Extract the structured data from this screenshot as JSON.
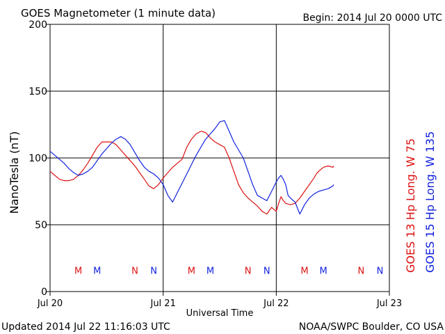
{
  "page": {
    "title": "GOES Magnetometer (1 minute data)",
    "begin": "Begin:  2014 Jul 20 0000 UTC",
    "updated": "Updated 2014 Jul 22 11:16:03 UTC",
    "credit": "NOAA/SWPC Boulder, CO USA"
  },
  "colors": {
    "goes13": "#dd1111",
    "goes15": "#1122dd",
    "axis": "#000000",
    "grid": "#000000",
    "background": "#ffffff"
  },
  "chart_data": {
    "type": "line",
    "title": "GOES Magnetometer (1 minute data)",
    "xlabel": "Universal Time",
    "ylabel": "NanoTesla (nT)",
    "ylim": [
      0,
      200
    ],
    "xlim": [
      0,
      72
    ],
    "x_unit": "hours since 2014 Jul 20 0000 UTC",
    "yticks": [
      {
        "value": 0,
        "label": "0"
      },
      {
        "value": 50,
        "label": "50"
      },
      {
        "value": 100,
        "label": "100"
      },
      {
        "value": 150,
        "label": "150"
      },
      {
        "value": 200,
        "label": "200"
      }
    ],
    "xticks": [
      {
        "value": 0,
        "label": "Jul 20"
      },
      {
        "value": 24,
        "label": "Jul 21"
      },
      {
        "value": 48,
        "label": "Jul 22"
      },
      {
        "value": 72,
        "label": "Jul 23"
      }
    ],
    "grid": true,
    "legend_position": "right, vertical",
    "series": [
      {
        "name": "GOES 13 Hp  Long. W 75",
        "color": "#dd1111",
        "x": [
          0,
          1,
          2,
          3,
          4,
          5,
          6,
          7,
          8,
          9,
          10,
          11,
          12,
          13,
          14,
          15,
          16,
          17,
          18,
          19,
          20,
          21,
          22,
          23,
          24,
          25,
          26,
          27,
          28,
          29,
          30,
          31,
          32,
          33,
          34,
          35,
          36,
          37,
          38,
          39,
          40,
          41,
          42,
          43,
          44,
          45,
          46,
          47,
          48,
          48.5,
          49,
          49.5,
          50,
          51,
          52,
          53,
          54,
          55,
          56,
          56.5,
          57,
          58,
          59,
          60,
          60.2
        ],
        "y": [
          90,
          87,
          84,
          83,
          83,
          84,
          87,
          91,
          96,
          102,
          108,
          112,
          112,
          112,
          110,
          106,
          102,
          98,
          94,
          89,
          84,
          79,
          77,
          80,
          85,
          89,
          93,
          96,
          99,
          108,
          114,
          118,
          120,
          119,
          115,
          112,
          110,
          108,
          100,
          90,
          80,
          74,
          70,
          67,
          64,
          60,
          58,
          63,
          60,
          66,
          71,
          68,
          66,
          65,
          66,
          70,
          75,
          80,
          85,
          88,
          90,
          93,
          94,
          93,
          94
        ]
      },
      {
        "name": "GOES 15 Hp  Long. W 135",
        "color": "#1122dd",
        "x": [
          0,
          1,
          2,
          3,
          4,
          5,
          6,
          7,
          8,
          9,
          10,
          11,
          12,
          13,
          14,
          15,
          16,
          17,
          18,
          19,
          20,
          21,
          22,
          23,
          24,
          25,
          26,
          27,
          28,
          29,
          30,
          31,
          32,
          33,
          34,
          35,
          36,
          37,
          38,
          39,
          40,
          41,
          42,
          43,
          44,
          45,
          46,
          47,
          48,
          48.5,
          49,
          49.5,
          50,
          50.5,
          51,
          52,
          53,
          54,
          55,
          56,
          57,
          58,
          59,
          60,
          60.2
        ],
        "y": [
          105,
          102,
          99,
          96,
          92,
          89,
          87,
          88,
          90,
          93,
          98,
          103,
          107,
          111,
          114,
          116,
          114,
          110,
          104,
          98,
          93,
          90,
          88,
          85,
          80,
          72,
          67,
          74,
          81,
          88,
          95,
          102,
          108,
          114,
          118,
          122,
          127,
          128,
          120,
          112,
          106,
          100,
          90,
          80,
          72,
          70,
          68,
          75,
          82,
          85,
          87,
          84,
          80,
          72,
          70,
          67,
          58,
          65,
          70,
          73,
          75,
          76,
          77,
          79,
          80
        ]
      }
    ],
    "markers": [
      {
        "label": "M",
        "x": 6,
        "color": "#dd1111"
      },
      {
        "label": "M",
        "x": 10,
        "color": "#1122dd"
      },
      {
        "label": "N",
        "x": 18,
        "color": "#dd1111"
      },
      {
        "label": "N",
        "x": 22,
        "color": "#1122dd"
      },
      {
        "label": "M",
        "x": 30,
        "color": "#dd1111"
      },
      {
        "label": "M",
        "x": 34,
        "color": "#1122dd"
      },
      {
        "label": "N",
        "x": 42,
        "color": "#dd1111"
      },
      {
        "label": "N",
        "x": 46,
        "color": "#1122dd"
      },
      {
        "label": "M",
        "x": 54,
        "color": "#dd1111"
      },
      {
        "label": "M",
        "x": 58,
        "color": "#1122dd"
      },
      {
        "label": "N",
        "x": 66,
        "color": "#dd1111"
      },
      {
        "label": "N",
        "x": 70,
        "color": "#1122dd"
      }
    ],
    "marker_y": 16
  }
}
